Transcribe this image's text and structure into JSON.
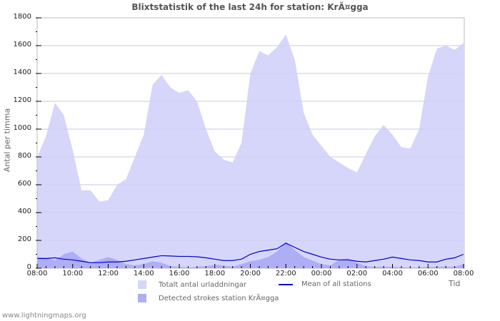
{
  "title": "Blixtstatistik of the last 24h for station: KrÃ¤gga",
  "footer": "www.lightningmaps.org",
  "colors": {
    "total_fill": "#d6d6fb",
    "detected_fill": "#aeaef7",
    "mean_line": "#0000cc",
    "grid": "#cccccc",
    "axis": "#bbbbbb"
  },
  "legend": {
    "total": "Totalt antal urladdningar",
    "mean": "Mean of all stations",
    "detected": "Detected strokes station KrÃ¤gga"
  },
  "axes": {
    "ylabel": "Antal per timma",
    "xlabel": "Tid",
    "yticks": [
      "0",
      "200",
      "400",
      "600",
      "800",
      "1000",
      "1200",
      "1400",
      "1600",
      "1800"
    ],
    "xticks": [
      "08:00",
      "10:00",
      "12:00",
      "14:00",
      "16:00",
      "18:00",
      "20:00",
      "22:00",
      "00:00",
      "02:00",
      "04:00",
      "06:00",
      "08:00"
    ]
  },
  "chart_data": {
    "type": "area",
    "title": "Blixtstatistik of the last 24h for station: KrÃ¤gga",
    "xlabel": "Tid",
    "ylabel": "Antal per timma",
    "ylim": [
      0,
      1800
    ],
    "grid": true,
    "legend_position": "bottom",
    "x": [
      "08:00",
      "08:30",
      "09:00",
      "09:30",
      "10:00",
      "10:30",
      "11:00",
      "11:30",
      "12:00",
      "12:30",
      "13:00",
      "13:30",
      "14:00",
      "14:30",
      "15:00",
      "15:30",
      "16:00",
      "16:30",
      "17:00",
      "17:30",
      "18:00",
      "18:30",
      "19:00",
      "19:30",
      "20:00",
      "20:30",
      "21:00",
      "21:30",
      "22:00",
      "22:30",
      "23:00",
      "23:30",
      "00:00",
      "00:30",
      "01:00",
      "01:30",
      "02:00",
      "02:30",
      "03:00",
      "03:30",
      "04:00",
      "04:30",
      "05:00",
      "05:30",
      "06:00",
      "06:30",
      "07:00",
      "07:30",
      "08:00"
    ],
    "series": [
      {
        "name": "Totalt antal urladdningar",
        "type": "area",
        "values": [
          800,
          950,
          1190,
          1100,
          850,
          560,
          560,
          480,
          490,
          600,
          640,
          800,
          960,
          1320,
          1390,
          1300,
          1260,
          1280,
          1200,
          1000,
          840,
          780,
          760,
          900,
          1400,
          1560,
          1530,
          1590,
          1680,
          1500,
          1120,
          960,
          880,
          800,
          760,
          720,
          690,
          820,
          950,
          1030,
          960,
          870,
          860,
          1000,
          1380,
          1580,
          1600,
          1570,
          1620
        ]
      },
      {
        "name": "Detected strokes station KrÃ¤gga",
        "type": "area",
        "values": [
          80,
          75,
          55,
          100,
          120,
          70,
          40,
          60,
          80,
          60,
          30,
          20,
          30,
          50,
          40,
          15,
          10,
          5,
          10,
          15,
          25,
          20,
          10,
          30,
          50,
          60,
          80,
          120,
          190,
          130,
          80,
          55,
          30,
          20,
          60,
          70,
          40,
          15,
          10,
          12,
          10,
          8,
          5,
          5,
          10,
          10,
          12,
          10,
          30
        ]
      },
      {
        "name": "Mean of all stations",
        "type": "line",
        "values": [
          70,
          70,
          75,
          65,
          60,
          50,
          40,
          40,
          45,
          45,
          50,
          60,
          70,
          80,
          90,
          88,
          85,
          85,
          82,
          75,
          65,
          55,
          55,
          65,
          100,
          120,
          130,
          140,
          180,
          150,
          120,
          100,
          80,
          65,
          60,
          60,
          50,
          45,
          55,
          65,
          80,
          70,
          60,
          55,
          45,
          45,
          65,
          75,
          100
        ]
      }
    ]
  }
}
